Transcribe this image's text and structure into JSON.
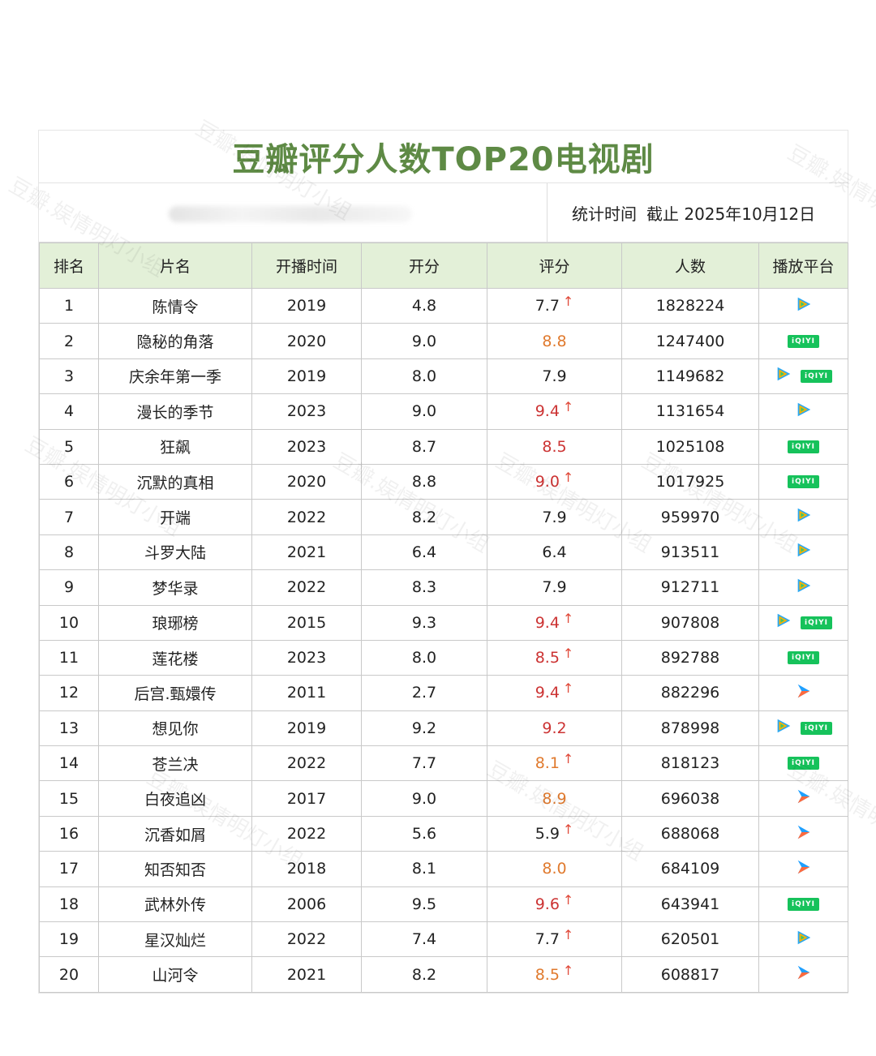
{
  "title": "豆瓣评分人数TOP20电视剧",
  "stat_label": "统计时间",
  "stat_value": "截止 2025年10月12日",
  "headers": [
    "排名",
    "片名",
    "开播时间",
    "开分",
    "评分",
    "人数",
    "播放平台"
  ],
  "colors": {
    "title": "#5e8a45",
    "header_bg": "#e3f0d8",
    "score_red": "#cc3333",
    "score_orange": "#e07a2e",
    "iqiyi": "#16c25b"
  },
  "rows": [
    {
      "rank": "1",
      "name": "陈情令",
      "year": "2019",
      "open": "4.8",
      "score": "7.7",
      "score_color": "normal",
      "up": true,
      "people": "1828224",
      "platforms": [
        "tencent-video-icon"
      ]
    },
    {
      "rank": "2",
      "name": "隐秘的角落",
      "year": "2020",
      "open": "9.0",
      "score": "8.8",
      "score_color": "orange",
      "up": false,
      "people": "1247400",
      "platforms": [
        "iqiyi-icon"
      ]
    },
    {
      "rank": "3",
      "name": "庆余年第一季",
      "year": "2019",
      "open": "8.0",
      "score": "7.9",
      "score_color": "normal",
      "up": false,
      "people": "1149682",
      "platforms": [
        "tencent-video-icon",
        "iqiyi-icon"
      ]
    },
    {
      "rank": "4",
      "name": "漫长的季节",
      "year": "2023",
      "open": "9.0",
      "score": "9.4",
      "score_color": "red",
      "up": true,
      "people": "1131654",
      "platforms": [
        "tencent-video-icon"
      ]
    },
    {
      "rank": "5",
      "name": "狂飙",
      "year": "2023",
      "open": "8.7",
      "score": "8.5",
      "score_color": "red",
      "up": false,
      "people": "1025108",
      "platforms": [
        "iqiyi-icon"
      ]
    },
    {
      "rank": "6",
      "name": "沉默的真相",
      "year": "2020",
      "open": "8.8",
      "score": "9.0",
      "score_color": "red",
      "up": true,
      "people": "1017925",
      "platforms": [
        "iqiyi-icon"
      ]
    },
    {
      "rank": "7",
      "name": "开端",
      "year": "2022",
      "open": "8.2",
      "score": "7.9",
      "score_color": "normal",
      "up": false,
      "people": "959970",
      "platforms": [
        "tencent-video-icon"
      ]
    },
    {
      "rank": "8",
      "name": "斗罗大陆",
      "year": "2021",
      "open": "6.4",
      "score": "6.4",
      "score_color": "normal",
      "up": false,
      "people": "913511",
      "platforms": [
        "tencent-video-icon"
      ]
    },
    {
      "rank": "9",
      "name": "梦华录",
      "year": "2022",
      "open": "8.3",
      "score": "7.9",
      "score_color": "normal",
      "up": false,
      "people": "912711",
      "platforms": [
        "tencent-video-icon"
      ]
    },
    {
      "rank": "10",
      "name": "琅琊榜",
      "year": "2015",
      "open": "9.3",
      "score": "9.4",
      "score_color": "red",
      "up": true,
      "people": "907808",
      "platforms": [
        "tencent-video-icon",
        "iqiyi-icon"
      ]
    },
    {
      "rank": "11",
      "name": "莲花楼",
      "year": "2023",
      "open": "8.0",
      "score": "8.5",
      "score_color": "red",
      "up": true,
      "people": "892788",
      "platforms": [
        "iqiyi-icon"
      ]
    },
    {
      "rank": "12",
      "name": "后宫.甄嬛传",
      "year": "2011",
      "open": "2.7",
      "score": "9.4",
      "score_color": "red",
      "up": true,
      "people": "882296",
      "platforms": [
        "youku-icon"
      ]
    },
    {
      "rank": "13",
      "name": "想见你",
      "year": "2019",
      "open": "9.2",
      "score": "9.2",
      "score_color": "red",
      "up": false,
      "people": "878998",
      "platforms": [
        "tencent-video-icon",
        "iqiyi-icon"
      ]
    },
    {
      "rank": "14",
      "name": "苍兰决",
      "year": "2022",
      "open": "7.7",
      "score": "8.1",
      "score_color": "orange",
      "up": true,
      "people": "818123",
      "platforms": [
        "iqiyi-icon"
      ]
    },
    {
      "rank": "15",
      "name": "白夜追凶",
      "year": "2017",
      "open": "9.0",
      "score": "8.9",
      "score_color": "orange",
      "up": false,
      "people": "696038",
      "platforms": [
        "youku-icon"
      ]
    },
    {
      "rank": "16",
      "name": "沉香如屑",
      "year": "2022",
      "open": "5.6",
      "score": "5.9",
      "score_color": "normal",
      "up": true,
      "people": "688068",
      "platforms": [
        "youku-icon"
      ]
    },
    {
      "rank": "17",
      "name": "知否知否",
      "year": "2018",
      "open": "8.1",
      "score": "8.0",
      "score_color": "orange",
      "up": false,
      "people": "684109",
      "platforms": [
        "youku-icon"
      ]
    },
    {
      "rank": "18",
      "name": "武林外传",
      "year": "2006",
      "open": "9.5",
      "score": "9.6",
      "score_color": "red",
      "up": true,
      "people": "643941",
      "platforms": [
        "iqiyi-icon"
      ]
    },
    {
      "rank": "19",
      "name": "星汉灿烂",
      "year": "2022",
      "open": "7.4",
      "score": "7.7",
      "score_color": "normal",
      "up": true,
      "people": "620501",
      "platforms": [
        "tencent-video-icon"
      ]
    },
    {
      "rank": "20",
      "name": "山河令",
      "year": "2021",
      "open": "8.2",
      "score": "8.5",
      "score_color": "orange",
      "up": true,
      "people": "608817",
      "platforms": [
        "youku-icon"
      ]
    }
  ],
  "iqiyi_text": "iQIYI",
  "watermark_text": "豆瓣.娱情明灯小组"
}
